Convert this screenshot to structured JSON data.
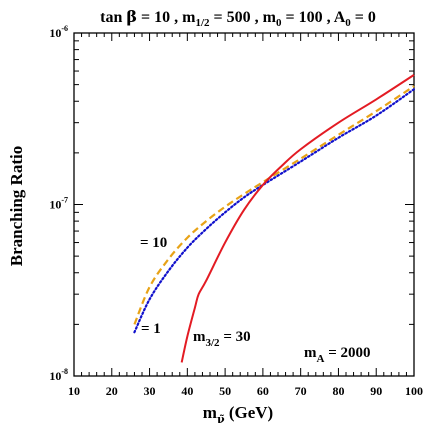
{
  "chart_data": {
    "type": "line",
    "title": {
      "tanb_prefix": "tan ",
      "beta": "β",
      "tanb_value": " = 10 ,  ",
      "mhalf_m": "m",
      "mhalf_sub": "1/2",
      "mhalf_value": " = 500 ,  ",
      "m0_m": "m",
      "m0_sub": "0",
      "m0_value": " = 100 , ",
      "a0_a": "A",
      "a0_sub": "0",
      "a0_value": " = 0"
    },
    "xlabel": {
      "m": "m",
      "sub": "ν̃",
      "rest": " (GeV)"
    },
    "ylabel": "Branching Ratio",
    "xlim": [
      10,
      100
    ],
    "ylim": [
      1e-08,
      1e-06
    ],
    "yscale": "log",
    "x_ticks": [
      "10",
      "20",
      "30",
      "40",
      "50",
      "60",
      "70",
      "80",
      "90",
      "100"
    ],
    "y_ticks": [
      {
        "value": 1e-06,
        "base": "10",
        "exp": "-6"
      },
      {
        "value": 1e-07,
        "base": "10",
        "exp": "-7"
      },
      {
        "value": 1e-08,
        "base": "10",
        "exp": "-8"
      }
    ],
    "series": [
      {
        "name": "m3/2 = 10",
        "color": "#e8a317",
        "style": "dashed",
        "x": [
          26,
          30,
          35,
          40,
          45,
          50,
          55,
          60,
          70,
          80,
          90,
          100
        ],
        "y": [
          2e-08,
          3.3e-08,
          4.8e-08,
          6.4e-08,
          8e-08,
          9.7e-08,
          1.15e-07,
          1.35e-07,
          1.85e-07,
          2.55e-07,
          3.5e-07,
          4.9e-07
        ]
      },
      {
        "name": "m3/2 = 1",
        "color": "#1111cc",
        "style": "dotted",
        "x": [
          26,
          30,
          35,
          40,
          45,
          50,
          55,
          60,
          70,
          80,
          90,
          100
        ],
        "y": [
          1.8e-08,
          2.8e-08,
          4.1e-08,
          5.6e-08,
          7.2e-08,
          9e-08,
          1.1e-07,
          1.3e-07,
          1.78e-07,
          2.45e-07,
          3.3e-07,
          4.7e-07
        ]
      },
      {
        "name": "m3/2 = 30",
        "color": "#e31b23",
        "style": "solid",
        "x": [
          38.5,
          40,
          42,
          43,
          45,
          50,
          55,
          60,
          65,
          70,
          80,
          90,
          100
        ],
        "y": [
          1.2e-08,
          1.7e-08,
          2.5e-08,
          3e-08,
          3.6e-08,
          6e-08,
          9.3e-08,
          1.3e-07,
          1.68e-07,
          2.1e-07,
          3e-07,
          4.1e-07,
          5.7e-07
        ]
      }
    ],
    "annotations": {
      "label_10": "= 10",
      "label_1": "= 1",
      "label_30_m": "m",
      "label_30_sub": "3/2",
      "label_30_value": " = 30",
      "ma_m": "m",
      "ma_sub": "A",
      "ma_value": " = 2000"
    }
  }
}
